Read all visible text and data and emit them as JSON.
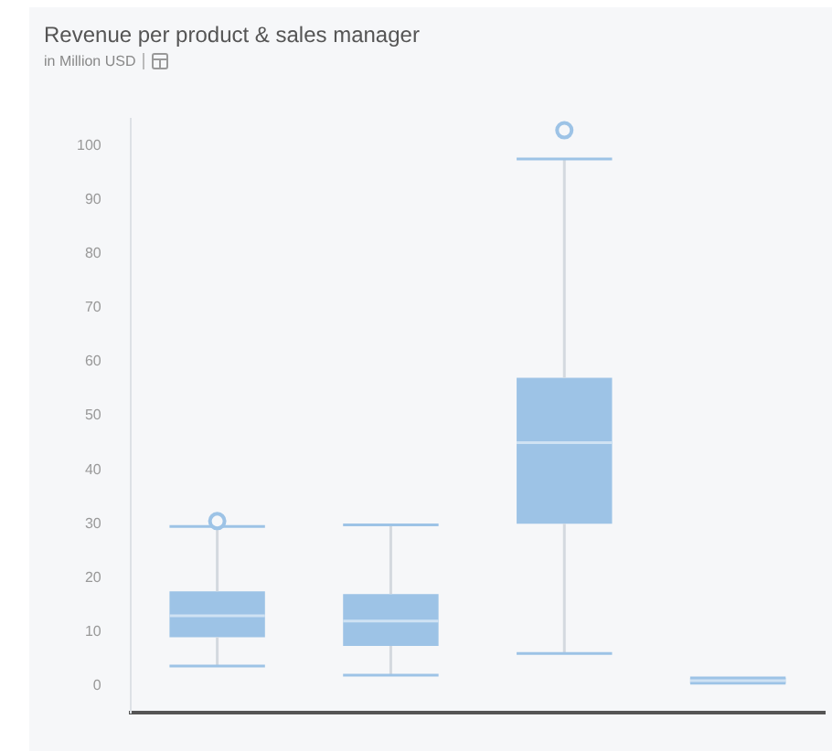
{
  "chart_data": {
    "type": "box",
    "title": "Revenue per product & sales manager",
    "subtitle": "in Million USD",
    "categories": [
      null,
      null,
      null,
      null
    ],
    "color": "#9dc3e6",
    "boxes": [
      {
        "low": 3.7,
        "q1": 9,
        "median": 13,
        "q3": 17.5,
        "high": 29.5,
        "outliers": [
          30.5
        ]
      },
      {
        "low": 2,
        "q1": 7.4,
        "median": 12,
        "q3": 17,
        "high": 29.8
      },
      {
        "low": 6,
        "q1": 30,
        "median": 45,
        "q3": 57,
        "high": 97.5,
        "outliers": [
          102.8
        ]
      },
      {
        "low": 0.5,
        "q1": 0.5,
        "median": 1,
        "q3": 1.5,
        "high": 1.5
      }
    ],
    "ylim": [
      -5,
      105
    ],
    "yticks": [
      0,
      10,
      20,
      30,
      40,
      50,
      60,
      70,
      80,
      90,
      100
    ],
    "grid": false,
    "legend": false
  }
}
